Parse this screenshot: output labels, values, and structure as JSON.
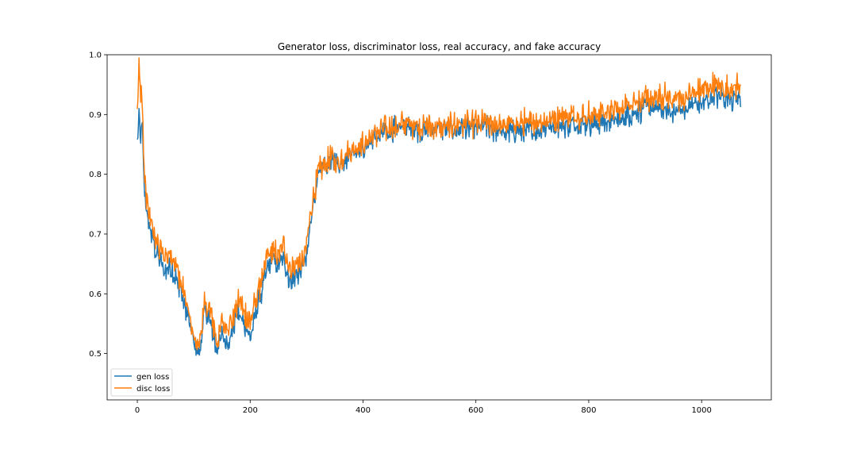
{
  "chart_data": {
    "type": "line",
    "title": "Generator loss, discriminator loss, real accuracy, and fake accuracy",
    "xlabel": "",
    "ylabel": "",
    "xlim": [
      -53.5,
      1123.5
    ],
    "ylim": [
      0.4225,
      1.0
    ],
    "x_ticks": [
      0,
      200,
      400,
      600,
      800,
      1000
    ],
    "y_ticks": [
      0.5,
      0.6,
      0.7,
      0.8,
      0.9,
      1.0
    ],
    "x_tick_labels": [
      "0",
      "200",
      "400",
      "600",
      "800",
      "1000"
    ],
    "y_tick_labels": [
      "0.5",
      "0.6",
      "0.7",
      "0.8",
      "0.9",
      "1.0"
    ],
    "grid": false,
    "legend_position": "lower-left",
    "n_points": 1070,
    "series": [
      {
        "name": "gen loss",
        "color": "#1f77b4",
        "noise": 0.018,
        "keypoints": [
          [
            0,
            0.86
          ],
          [
            3,
            0.895
          ],
          [
            6,
            0.85
          ],
          [
            9,
            0.88
          ],
          [
            12,
            0.78
          ],
          [
            16,
            0.74
          ],
          [
            22,
            0.71
          ],
          [
            30,
            0.68
          ],
          [
            40,
            0.655
          ],
          [
            50,
            0.635
          ],
          [
            60,
            0.645
          ],
          [
            70,
            0.62
          ],
          [
            80,
            0.6
          ],
          [
            90,
            0.56
          ],
          [
            100,
            0.52
          ],
          [
            110,
            0.5
          ],
          [
            120,
            0.575
          ],
          [
            130,
            0.55
          ],
          [
            140,
            0.505
          ],
          [
            150,
            0.53
          ],
          [
            160,
            0.515
          ],
          [
            170,
            0.55
          ],
          [
            180,
            0.57
          ],
          [
            190,
            0.55
          ],
          [
            200,
            0.53
          ],
          [
            210,
            0.57
          ],
          [
            220,
            0.6
          ],
          [
            230,
            0.64
          ],
          [
            240,
            0.655
          ],
          [
            250,
            0.65
          ],
          [
            260,
            0.66
          ],
          [
            270,
            0.62
          ],
          [
            280,
            0.63
          ],
          [
            290,
            0.64
          ],
          [
            300,
            0.66
          ],
          [
            310,
            0.74
          ],
          [
            320,
            0.79
          ],
          [
            330,
            0.81
          ],
          [
            340,
            0.82
          ],
          [
            360,
            0.82
          ],
          [
            380,
            0.835
          ],
          [
            400,
            0.845
          ],
          [
            420,
            0.86
          ],
          [
            440,
            0.87
          ],
          [
            460,
            0.88
          ],
          [
            480,
            0.88
          ],
          [
            500,
            0.875
          ],
          [
            550,
            0.875
          ],
          [
            600,
            0.88
          ],
          [
            650,
            0.87
          ],
          [
            700,
            0.875
          ],
          [
            750,
            0.88
          ],
          [
            800,
            0.885
          ],
          [
            850,
            0.89
          ],
          [
            870,
            0.9
          ],
          [
            900,
            0.91
          ],
          [
            930,
            0.91
          ],
          [
            960,
            0.905
          ],
          [
            990,
            0.915
          ],
          [
            1020,
            0.93
          ],
          [
            1050,
            0.925
          ],
          [
            1069,
            0.93
          ]
        ]
      },
      {
        "name": "disc loss",
        "color": "#ff7f0e",
        "noise": 0.02,
        "keypoints": [
          [
            0,
            0.915
          ],
          [
            3,
            0.97
          ],
          [
            6,
            0.94
          ],
          [
            9,
            0.9
          ],
          [
            12,
            0.82
          ],
          [
            16,
            0.76
          ],
          [
            22,
            0.73
          ],
          [
            30,
            0.7
          ],
          [
            40,
            0.67
          ],
          [
            50,
            0.66
          ],
          [
            60,
            0.67
          ],
          [
            70,
            0.64
          ],
          [
            80,
            0.61
          ],
          [
            90,
            0.57
          ],
          [
            100,
            0.53
          ],
          [
            110,
            0.51
          ],
          [
            120,
            0.59
          ],
          [
            130,
            0.57
          ],
          [
            140,
            0.52
          ],
          [
            150,
            0.55
          ],
          [
            160,
            0.54
          ],
          [
            170,
            0.56
          ],
          [
            180,
            0.59
          ],
          [
            190,
            0.57
          ],
          [
            200,
            0.55
          ],
          [
            210,
            0.59
          ],
          [
            220,
            0.62
          ],
          [
            230,
            0.66
          ],
          [
            240,
            0.67
          ],
          [
            250,
            0.665
          ],
          [
            260,
            0.68
          ],
          [
            270,
            0.64
          ],
          [
            280,
            0.645
          ],
          [
            290,
            0.65
          ],
          [
            300,
            0.675
          ],
          [
            310,
            0.75
          ],
          [
            320,
            0.8
          ],
          [
            330,
            0.815
          ],
          [
            340,
            0.825
          ],
          [
            360,
            0.825
          ],
          [
            380,
            0.84
          ],
          [
            400,
            0.85
          ],
          [
            420,
            0.865
          ],
          [
            440,
            0.875
          ],
          [
            460,
            0.88
          ],
          [
            480,
            0.885
          ],
          [
            500,
            0.88
          ],
          [
            550,
            0.88
          ],
          [
            600,
            0.885
          ],
          [
            650,
            0.88
          ],
          [
            700,
            0.89
          ],
          [
            750,
            0.895
          ],
          [
            800,
            0.9
          ],
          [
            850,
            0.905
          ],
          [
            870,
            0.92
          ],
          [
            900,
            0.925
          ],
          [
            930,
            0.93
          ],
          [
            960,
            0.925
          ],
          [
            990,
            0.935
          ],
          [
            1020,
            0.95
          ],
          [
            1050,
            0.945
          ],
          [
            1069,
            0.95
          ]
        ]
      }
    ]
  }
}
